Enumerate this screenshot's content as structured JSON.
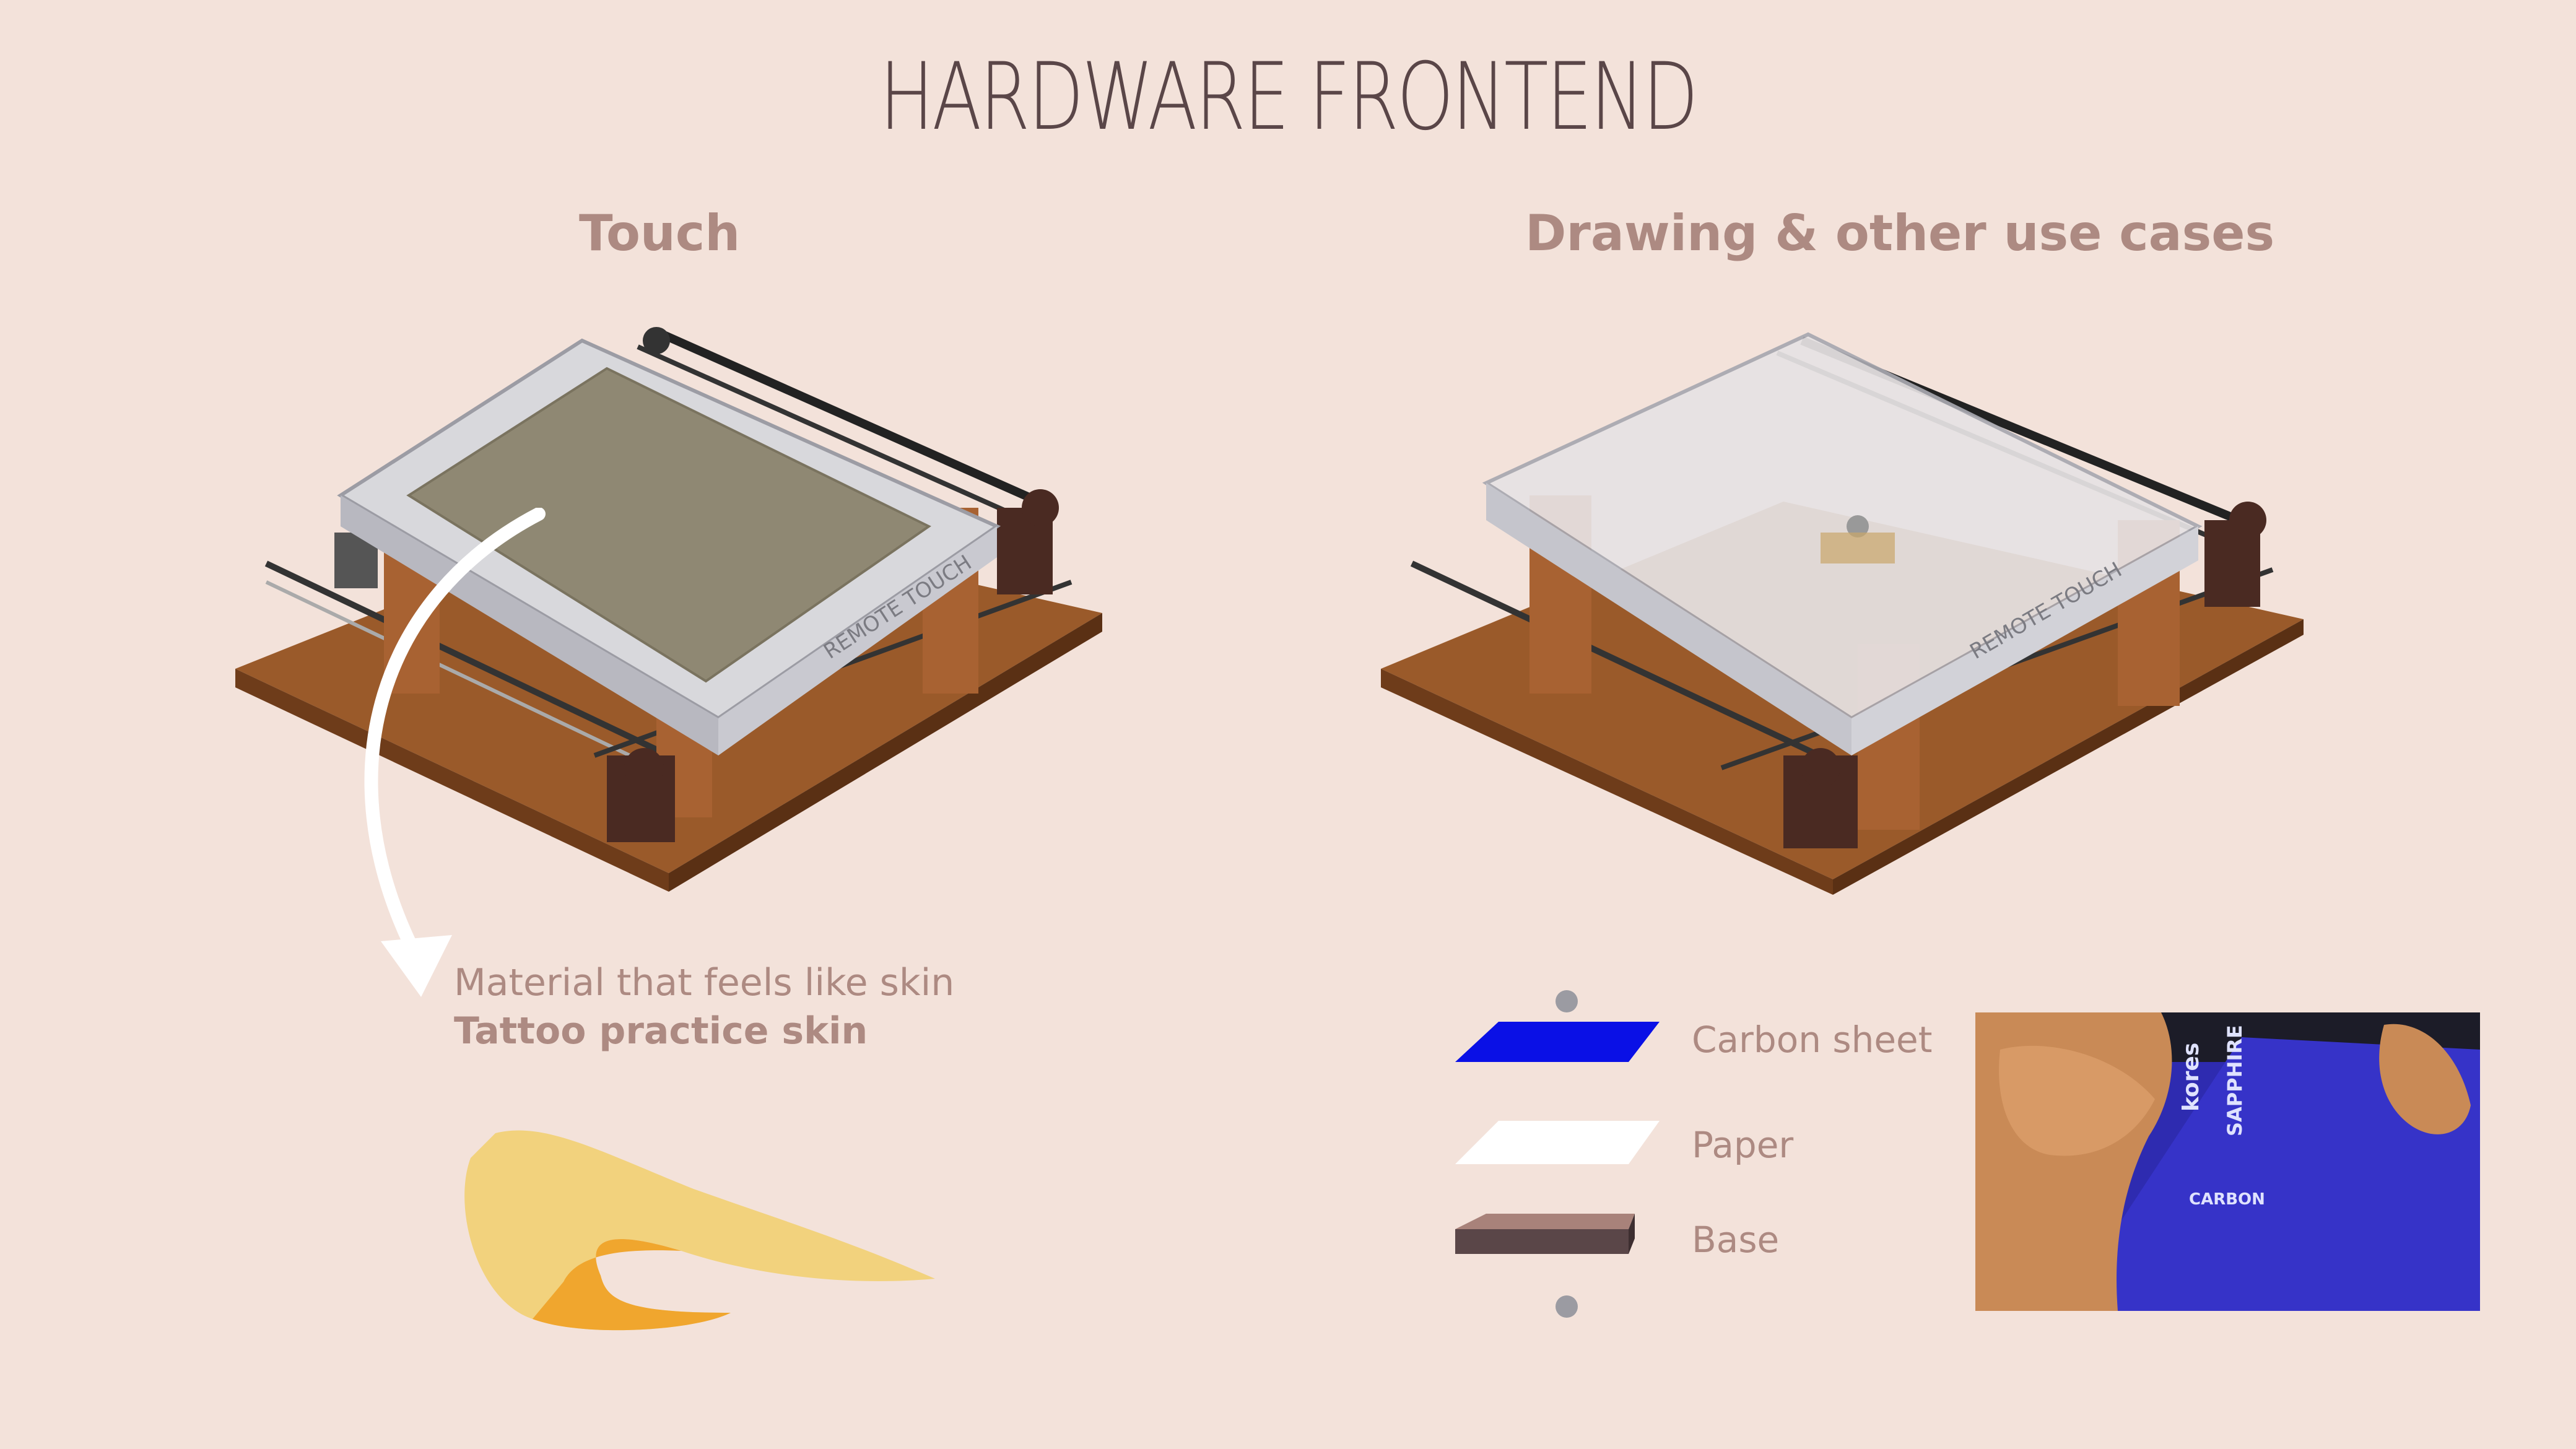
{
  "title": "HARDWARE FRONTEND",
  "left_panel": {
    "heading": "Touch",
    "device_label": "REMOTE TOUCH",
    "caption_line1": "Material that feels like skin",
    "caption_line2": "Tattoo practice skin"
  },
  "right_panel": {
    "heading": "Drawing & other use cases",
    "device_label": "REMOTE TOUCH",
    "layers": [
      {
        "label": "Carbon sheet",
        "color": "#0a10e6"
      },
      {
        "label": "Paper",
        "color": "#ffffff"
      },
      {
        "label": "Base",
        "color": "#a8827a"
      }
    ],
    "photo_labels": {
      "brand": "kores",
      "product": "SAPPHIRE",
      "sheet": "CARBON"
    }
  },
  "colors": {
    "background": "#f3e2da",
    "title": "#5a4648",
    "accent_text": "#ad8a82",
    "wood": "#8a4f24",
    "skin": "#f2d27d"
  }
}
